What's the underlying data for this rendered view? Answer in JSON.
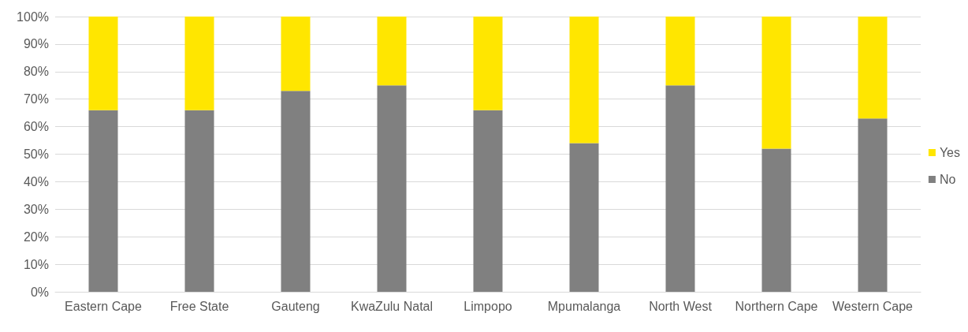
{
  "chart_data": {
    "type": "bar",
    "stacked": true,
    "categories": [
      "Eastern Cape",
      "Free State",
      "Gauteng",
      "KwaZulu Natal",
      "Limpopo",
      "Mpumalanga",
      "North West",
      "Northern Cape",
      "Western Cape"
    ],
    "series": [
      {
        "name": "No",
        "color": "#808080",
        "values": [
          66,
          66,
          73,
          75,
          66,
          54,
          75,
          52,
          63
        ]
      },
      {
        "name": "Yes",
        "color": "#ffe600",
        "values": [
          34,
          34,
          27,
          25,
          34,
          46,
          25,
          48,
          37
        ]
      }
    ],
    "ylim": [
      0,
      100
    ],
    "yticks": [
      {
        "value": 0,
        "label": "0%"
      },
      {
        "value": 10,
        "label": "10%"
      },
      {
        "value": 20,
        "label": "20%"
      },
      {
        "value": 30,
        "label": "30%"
      },
      {
        "value": 40,
        "label": "40%"
      },
      {
        "value": 50,
        "label": "50%"
      },
      {
        "value": 60,
        "label": "60%"
      },
      {
        "value": 70,
        "label": "70%"
      },
      {
        "value": 80,
        "label": "80%"
      },
      {
        "value": 90,
        "label": "90%"
      },
      {
        "value": 100,
        "label": "100%"
      }
    ],
    "grid": "y",
    "legend": "right"
  }
}
